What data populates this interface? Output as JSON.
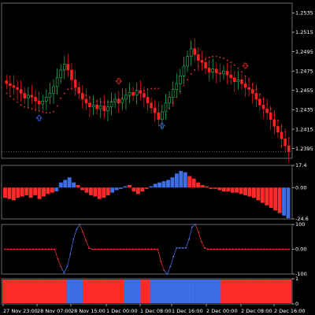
{
  "colors": {
    "background": "#000000",
    "bull": "#22c55e",
    "bear": "#ff2020",
    "axis": "#ffffff",
    "panel_border": "#b0b0b0",
    "bar_red": "#ff2a2a",
    "bar_blue": "#3d6ee6",
    "dotted_red": "#ff3030",
    "dotted_blue": "#4a78ff",
    "arrow_up": "#3a66ff",
    "arrow_down": "#ff2a2a",
    "current_price_line": "#c8c8c8"
  },
  "chart_data": [
    {
      "type": "candlestick",
      "panel": "price",
      "y_ticks": [
        "1.2535",
        "1.2515",
        "1.2495",
        "1.2475",
        "1.2455",
        "1.2435",
        "1.2415",
        "1.2395"
      ],
      "ylim": [
        1.2385,
        1.2545
      ],
      "x_ticks": [
        "27 Nov 23:00",
        "28 Nov 07:00",
        "28 Nov 15:00",
        "1 Dec 00:00",
        "1 Dec 08:00",
        "1 Dec 16:00",
        "2 Dec 00:00",
        "2 Dec 08:00",
        "2 Dec 16:00"
      ],
      "close": [
        1.2462,
        1.246,
        1.2458,
        1.2456,
        1.2452,
        1.2447,
        1.245,
        1.2448,
        1.2444,
        1.2441,
        1.2444,
        1.2448,
        1.2452,
        1.2459,
        1.2468,
        1.2476,
        1.2482,
        1.2476,
        1.2466,
        1.2458,
        1.2452,
        1.2446,
        1.2442,
        1.2438,
        1.244,
        1.2436,
        1.2439,
        1.2434,
        1.2438,
        1.2443,
        1.2446,
        1.2442,
        1.2446,
        1.245,
        1.2453,
        1.245,
        1.2455,
        1.2452,
        1.2448,
        1.2442,
        1.2437,
        1.2432,
        1.2425,
        1.2433,
        1.2442,
        1.2448,
        1.2456,
        1.2462,
        1.247,
        1.248,
        1.249,
        1.2498,
        1.2492,
        1.2486,
        1.2484,
        1.2478,
        1.2474,
        1.2477,
        1.2473,
        1.2472,
        1.2475,
        1.2471,
        1.2468,
        1.2464,
        1.2466,
        1.2462,
        1.2458,
        1.2456,
        1.2452,
        1.2446,
        1.244,
        1.2436,
        1.2432,
        1.2425,
        1.2418,
        1.2412,
        1.2405,
        1.2398,
        1.2392
      ],
      "supertrend": [
        1.2452,
        1.2449,
        1.2446,
        1.2443,
        1.244,
        1.2438,
        1.2437,
        1.2436,
        1.2435,
        1.2434,
        1.2433,
        1.2432,
        1.2432,
        1.2433,
        1.2439,
        1.2447,
        1.2452,
        1.2456,
        1.2457,
        1.2456,
        1.2454,
        1.2452,
        1.245,
        1.2448,
        1.2446,
        1.2444,
        1.2443,
        1.2443,
        1.2443,
        1.2444,
        1.2445,
        1.2446,
        1.2447,
        1.2448,
        1.2449,
        1.245,
        1.2452,
        1.2454,
        1.2455,
        1.2456,
        1.2457,
        1.2457,
        1.2457,
        1.2426,
        1.243,
        1.2436,
        1.2442,
        1.2448,
        1.2454,
        1.246,
        1.2466,
        1.2472,
        1.2476,
        1.248,
        1.2484,
        1.2487,
        1.2489,
        1.249,
        1.249,
        1.2489,
        1.2488,
        1.2486,
        1.2484,
        1.2481,
        1.2478,
        1.2474,
        1.247,
        1.2466,
        1.2461,
        1.2456,
        1.2451,
        1.2446,
        1.2441,
        1.2436,
        1.243,
        1.2424,
        1.2418,
        1.2412,
        1.2406
      ],
      "buy_arrows": [
        9,
        43
      ],
      "sell_arrows": [
        31,
        66
      ]
    },
    {
      "type": "bar",
      "panel": "histogram",
      "y_ticks": [
        "17.4",
        "0.00",
        "-24.6"
      ],
      "ylim": [
        -24.6,
        17.4
      ],
      "values": [
        -8,
        -9,
        -10,
        -8,
        -7,
        -6,
        -8,
        -6,
        -9,
        -7,
        -5,
        -4,
        -3,
        4,
        6,
        8,
        4,
        2,
        -2,
        -4,
        -6,
        -7,
        -9,
        -8,
        -6,
        -4,
        -2,
        -1,
        1,
        2,
        -3,
        -5,
        -3,
        -1,
        1,
        3,
        4,
        5,
        6,
        8,
        11,
        13,
        12,
        9,
        7,
        4,
        2,
        1,
        -1,
        -1,
        -2,
        -3,
        -3,
        -4,
        -4,
        -5,
        -6,
        -7,
        -8,
        -10,
        -12,
        -14,
        -16,
        -18,
        -20,
        -22,
        -24
      ],
      "blue_indices": [
        12,
        13,
        14,
        15,
        16,
        25,
        26,
        27,
        28,
        34,
        35,
        36,
        37,
        38,
        39,
        40,
        41,
        42,
        65,
        66
      ]
    },
    {
      "type": "line",
      "panel": "oscillator",
      "y_ticks": [
        "100",
        "0.00",
        "-100"
      ],
      "ylim": [
        -100,
        100
      ],
      "values": [
        0,
        0,
        0,
        0,
        0,
        0,
        0,
        0,
        0,
        0,
        0,
        0,
        0,
        0,
        0,
        0,
        0,
        -40,
        -70,
        -95,
        -70,
        -20,
        40,
        80,
        100,
        70,
        35,
        5,
        0,
        0,
        0,
        0,
        0,
        0,
        0,
        0,
        0,
        0,
        0,
        0,
        0,
        0,
        0,
        0,
        0,
        0,
        0,
        0,
        0,
        0,
        -50,
        -85,
        -100,
        -70,
        -30,
        5,
        5,
        5,
        5,
        40,
        90,
        100,
        70,
        30,
        5,
        0,
        0,
        0,
        0,
        0,
        0,
        0,
        0,
        0,
        0,
        0,
        0,
        0,
        0,
        0,
        0,
        0,
        0,
        0,
        0,
        0,
        0,
        0,
        0,
        0,
        0,
        0
      ],
      "blue_indices": [
        19,
        20,
        21,
        22,
        23,
        24,
        52,
        53,
        54,
        55,
        56,
        57,
        58,
        59,
        60,
        61
      ]
    },
    {
      "type": "bar",
      "panel": "state",
      "y_ticks": [
        "1",
        "0"
      ],
      "ylim": [
        0,
        1
      ],
      "values": [
        1,
        1,
        1,
        1,
        1,
        1,
        1,
        1,
        1,
        1,
        1,
        1,
        1,
        1,
        1,
        1,
        1,
        1,
        1,
        1,
        1,
        1,
        1,
        1,
        1,
        1,
        1,
        1,
        1,
        1,
        1,
        1,
        1,
        1,
        1,
        1,
        1,
        1,
        1,
        1,
        1,
        1,
        1,
        1,
        1,
        1,
        1,
        1,
        1,
        1,
        1,
        1,
        1,
        1,
        1,
        1,
        1,
        1,
        1,
        1,
        1,
        1,
        1,
        1,
        1,
        1,
        1,
        1,
        1,
        1,
        1,
        1,
        1,
        1,
        1,
        1,
        1,
        1,
        1,
        1,
        1,
        1,
        1,
        1,
        1,
        1,
        1,
        1,
        1,
        1
      ],
      "blue_indices": [
        20,
        21,
        22,
        23,
        24,
        38,
        39,
        40,
        41,
        42,
        46,
        47,
        48,
        49,
        50,
        51,
        52,
        53,
        54,
        55,
        56,
        57,
        58,
        59,
        60,
        61,
        62,
        63,
        64,
        65,
        66,
        67
      ]
    }
  ]
}
